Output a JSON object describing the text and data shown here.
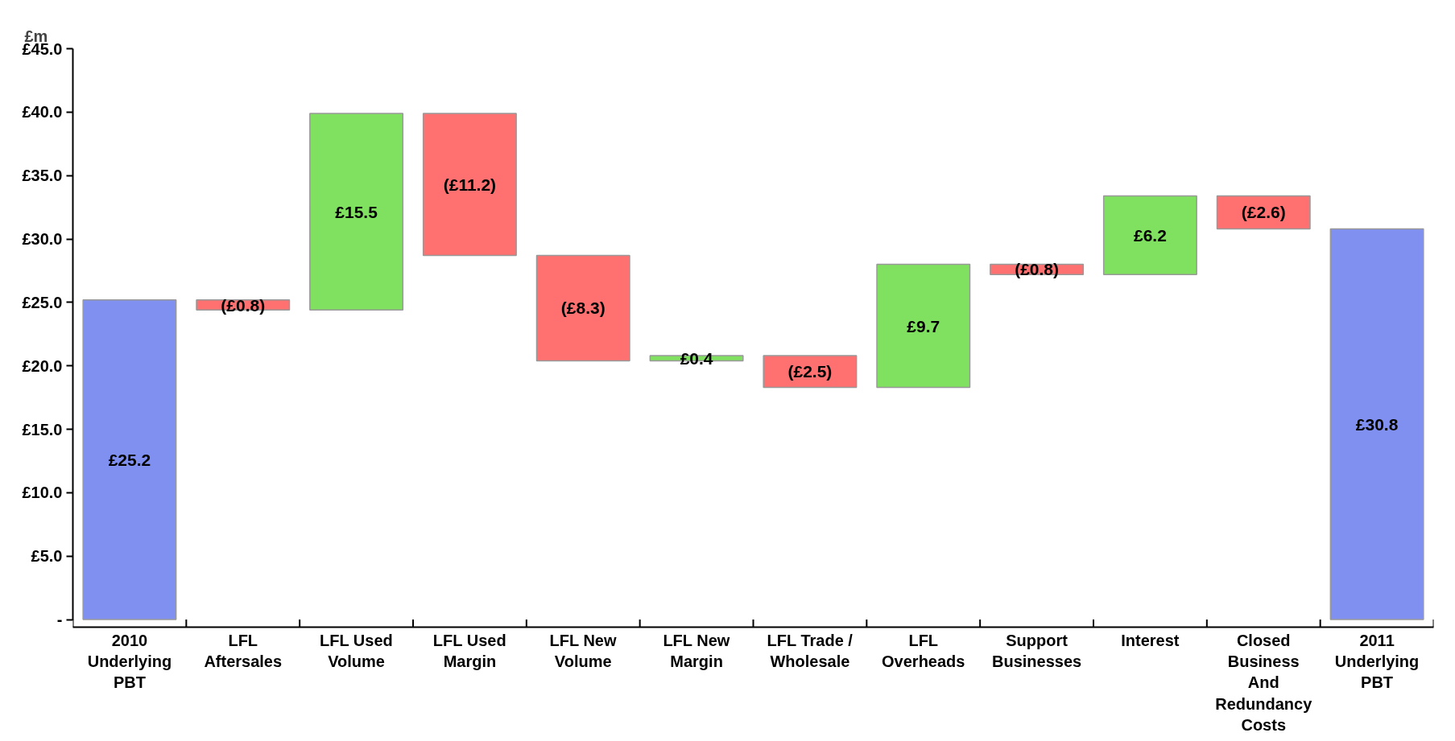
{
  "chart_data": {
    "type": "bar",
    "ylabel": "£m",
    "categories": [
      "2010\nUnderlying\nPBT",
      "LFL\nAftersales",
      "LFL Used\nVolume",
      "LFL Used\nMargin",
      "LFL New\nVolume",
      "LFL New\nMargin",
      "LFL Trade /\nWholesale",
      "LFL\nOverheads",
      "Support\nBusinesses",
      "Interest",
      "Closed\nBusiness\nAnd\nRedundancy\nCosts",
      "2011\nUnderlying\nPBT"
    ],
    "base": [
      0,
      25.2,
      24.4,
      39.9,
      28.7,
      20.4,
      20.8,
      18.3,
      28.0,
      27.2,
      33.4,
      0
    ],
    "values": [
      25.2,
      -0.8,
      15.5,
      -11.2,
      -8.3,
      0.4,
      -2.5,
      9.7,
      -0.8,
      6.2,
      -2.6,
      30.8
    ],
    "value_labels": [
      "£25.2",
      "(£0.8)",
      "£15.5",
      "(£11.2)",
      "(£8.3)",
      "£0.4",
      "(£2.5)",
      "£9.7",
      "(£0.8)",
      "£6.2",
      "(£2.6)",
      "£30.8"
    ],
    "colors": [
      "#8090f0",
      "#ff7070",
      "#80e060",
      "#ff7070",
      "#ff7070",
      "#80e060",
      "#ff7070",
      "#80e060",
      "#ff7070",
      "#80e060",
      "#ff7070",
      "#8090f0"
    ],
    "ylim": [
      0,
      45
    ],
    "yticks": [
      {
        "value": 0,
        "label": "-"
      },
      {
        "value": 5,
        "label": "£5.0"
      },
      {
        "value": 10,
        "label": "£10.0"
      },
      {
        "value": 15,
        "label": "£15.0"
      },
      {
        "value": 20,
        "label": "£20.0"
      },
      {
        "value": 25,
        "label": "£25.0"
      },
      {
        "value": 30,
        "label": "£30.0"
      },
      {
        "value": 35,
        "label": "£35.0"
      },
      {
        "value": 40,
        "label": "£40.0"
      },
      {
        "value": 45,
        "label": "£45.0"
      }
    ],
    "grid": false
  }
}
